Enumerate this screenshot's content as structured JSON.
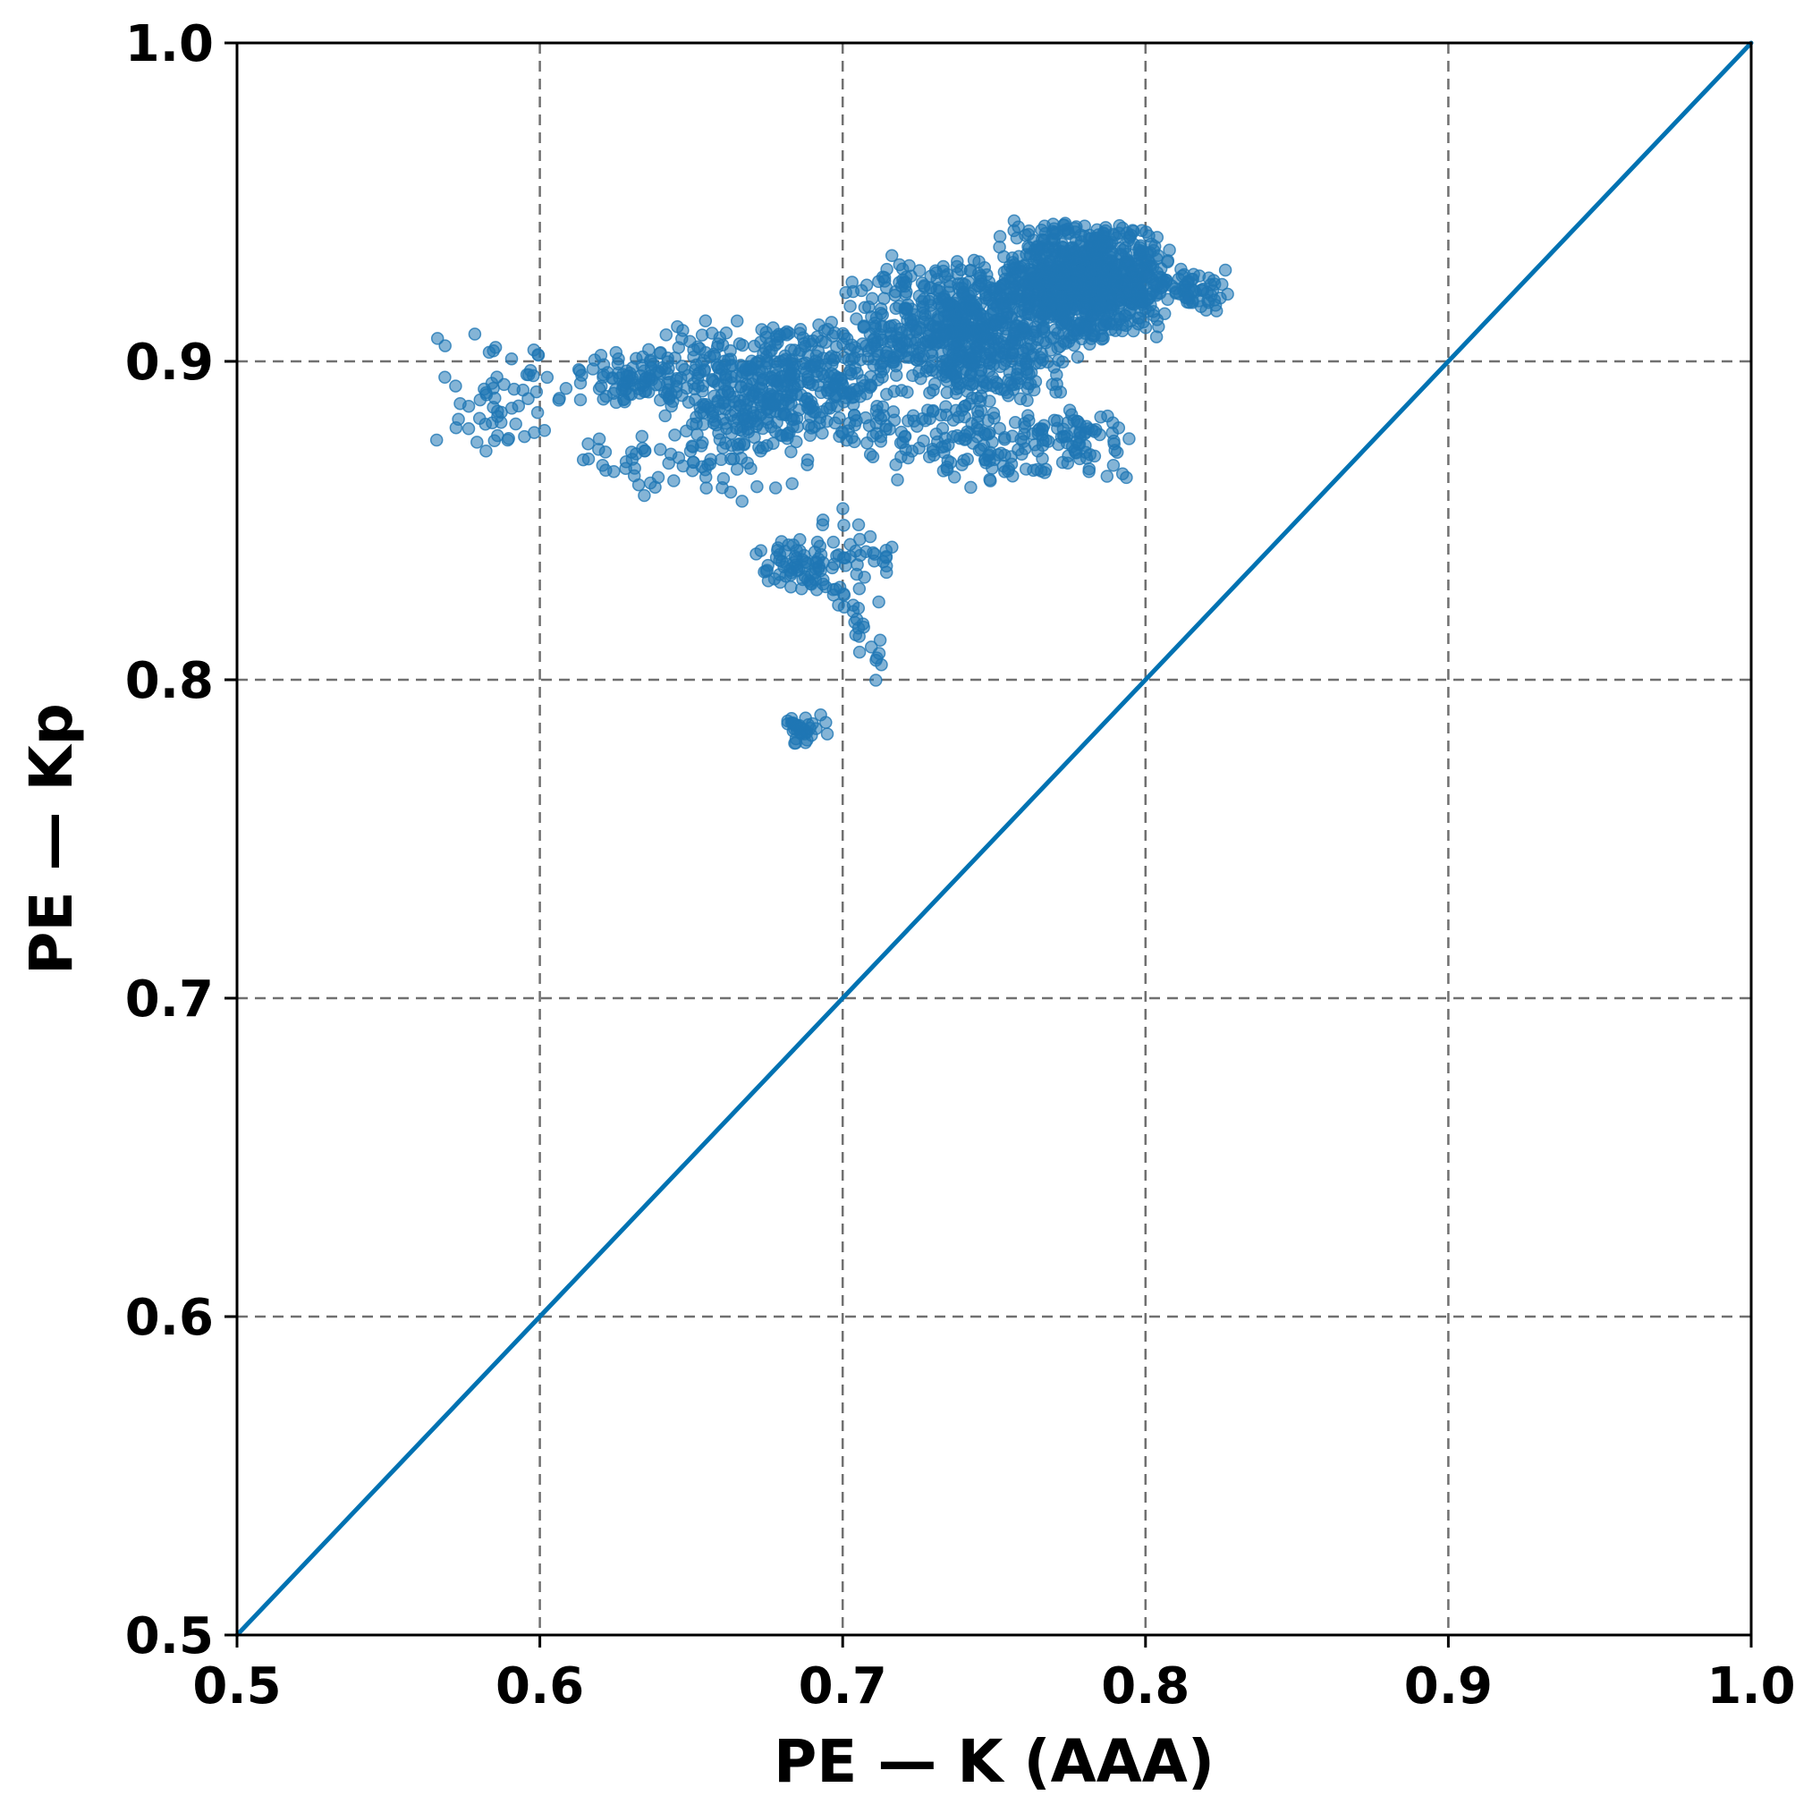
{
  "chart_data": {
    "type": "scatter",
    "title": "",
    "xlabel": "PE — K (AAA)",
    "ylabel": "PE — Kp",
    "xlim": [
      0.5,
      1.0
    ],
    "ylim": [
      0.5,
      1.0
    ],
    "xticks": [
      "0.5",
      "0.6",
      "0.7",
      "0.8",
      "0.9",
      "1.0"
    ],
    "yticks": [
      "0.5",
      "0.6",
      "0.7",
      "0.8",
      "0.9",
      "1.0"
    ],
    "grid": true,
    "legend": "none",
    "colors": {
      "points": "#1f77b4",
      "line": "#0072b2"
    },
    "reference_line": {
      "type": "identity",
      "x": [
        0.5,
        1.0
      ],
      "y": [
        0.5,
        1.0
      ]
    },
    "point_clusters": [
      {
        "x": [
          0.75,
          0.81
        ],
        "y": [
          0.905,
          0.945
        ],
        "n": 900
      },
      {
        "x": [
          0.7,
          0.78
        ],
        "y": [
          0.885,
          0.935
        ],
        "n": 700
      },
      {
        "x": [
          0.64,
          0.72
        ],
        "y": [
          0.87,
          0.915
        ],
        "n": 450
      },
      {
        "x": [
          0.61,
          0.66
        ],
        "y": [
          0.885,
          0.905
        ],
        "n": 120
      },
      {
        "x": [
          0.7,
          0.8
        ],
        "y": [
          0.86,
          0.89
        ],
        "n": 200
      },
      {
        "x": [
          0.8,
          0.83
        ],
        "y": [
          0.915,
          0.93
        ],
        "n": 60
      },
      {
        "x": [
          0.555,
          0.62
        ],
        "y": [
          0.865,
          0.912
        ],
        "n": 60
      },
      {
        "x": [
          0.61,
          0.7
        ],
        "y": [
          0.855,
          0.885
        ],
        "n": 80
      },
      {
        "x": [
          0.67,
          0.7
        ],
        "y": [
          0.825,
          0.845
        ],
        "n": 70
      },
      {
        "x": [
          0.69,
          0.72
        ],
        "y": [
          0.815,
          0.86
        ],
        "n": 45
      },
      {
        "x": [
          0.68,
          0.695
        ],
        "y": [
          0.778,
          0.79
        ],
        "n": 35
      },
      {
        "x": [
          0.695,
          0.72
        ],
        "y": [
          0.795,
          0.825
        ],
        "n": 15
      },
      {
        "x": [
          0.77,
          0.79
        ],
        "y": [
          0.87,
          0.885
        ],
        "n": 20
      }
    ]
  }
}
